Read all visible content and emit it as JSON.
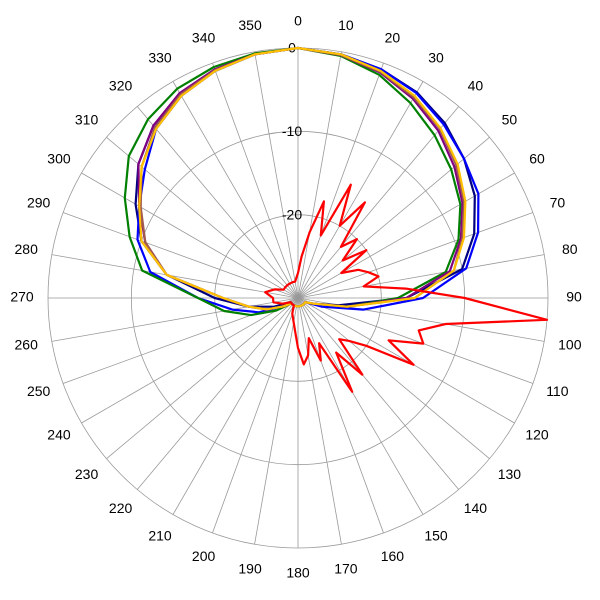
{
  "chart_data": {
    "type": "polar",
    "rlim": [
      -30,
      0
    ],
    "rticks": [
      -20,
      -10,
      0
    ],
    "theta": [
      0,
      10,
      20,
      30,
      40,
      50,
      60,
      70,
      80,
      90,
      100,
      110,
      120,
      130,
      140,
      150,
      160,
      170,
      180,
      190,
      200,
      210,
      220,
      230,
      240,
      250,
      260,
      270,
      280,
      290,
      300,
      310,
      320,
      330,
      340,
      350
    ],
    "series": [
      {
        "color": "#000080",
        "values": [
          0,
          -0.3,
          -0.8,
          -1.5,
          -2.6,
          -4,
          -5.5,
          -7.5,
          -10,
          -17,
          -25,
          -28,
          -29,
          -29,
          -29,
          -29,
          -29,
          -29,
          -29,
          -29,
          -29,
          -29,
          -29,
          -29,
          -29,
          -27,
          -24,
          -20,
          -14,
          -10,
          -7.5,
          -5,
          -3,
          -1.8,
          -1,
          -0.3
        ]
      },
      {
        "color": "#0000ff",
        "values": [
          0,
          -0.3,
          -0.8,
          -1.6,
          -2.8,
          -4,
          -5,
          -7,
          -9.5,
          -15,
          -22,
          -27,
          -29,
          -29,
          -29,
          -29,
          -29,
          -29,
          -29,
          -29,
          -29,
          -29,
          -29,
          -29,
          -28,
          -25,
          -22,
          -18,
          -12,
          -9.5,
          -8,
          -6,
          -3.5,
          -2,
          -1,
          -0.3
        ]
      },
      {
        "color": "#008000",
        "values": [
          0,
          -0.5,
          -1.5,
          -3,
          -4.5,
          -6,
          -7.5,
          -9.5,
          -12,
          -18,
          -24,
          -28,
          -29,
          -29,
          -29,
          -29,
          -29,
          -29,
          -29,
          -29,
          -29,
          -29,
          -29,
          -29,
          -27,
          -24,
          -21,
          -18,
          -11,
          -8.5,
          -6,
          -3.5,
          -2,
          -1,
          -0.5,
          -0.2
        ]
      },
      {
        "color": "#800080",
        "values": [
          0,
          -0.4,
          -1.2,
          -2.4,
          -3.8,
          -5.5,
          -7.2,
          -9.2,
          -11.5,
          -17,
          -24,
          -28,
          -29,
          -29,
          -29,
          -29,
          -29,
          -29,
          -29,
          -29,
          -29,
          -29,
          -29,
          -29,
          -28,
          -26,
          -24,
          -21,
          -14,
          -10.5,
          -8,
          -5,
          -3,
          -1.6,
          -0.8,
          -0.3
        ]
      },
      {
        "color": "#a05a50",
        "values": [
          0,
          -0.4,
          -1.1,
          -2.2,
          -3.5,
          -5.2,
          -7,
          -9,
          -11,
          -16,
          -24,
          -28,
          -29,
          -29,
          -29,
          -29,
          -29,
          -29,
          -29,
          -29,
          -29,
          -29,
          -29,
          -29,
          -28,
          -26,
          -24,
          -21,
          -14,
          -10.5,
          -8.2,
          -5.5,
          -3.3,
          -1.8,
          -0.9,
          -0.3
        ]
      },
      {
        "color": "#ffc000",
        "values": [
          0,
          -0.3,
          -1,
          -2,
          -3.4,
          -5,
          -6.8,
          -8.8,
          -11,
          -16,
          -24,
          -28,
          -29,
          -29,
          -29,
          -29,
          -29,
          -29,
          -29,
          -29,
          -29,
          -29,
          -29,
          -29,
          -28,
          -26,
          -24,
          -21,
          -14,
          -10,
          -8,
          -5.5,
          -3.5,
          -2,
          -1,
          -0.3
        ]
      },
      {
        "color": "#ff0000",
        "theta": [
          0,
          5,
          10,
          15,
          20,
          25,
          30,
          35,
          40,
          45,
          50,
          55,
          60,
          65,
          70,
          75,
          80,
          85,
          90,
          95,
          100,
          105,
          110,
          115,
          120,
          125,
          130,
          135,
          140,
          145,
          150,
          155,
          160,
          165,
          170,
          175,
          180,
          185,
          190,
          200,
          210,
          220,
          230,
          240,
          250,
          260,
          270,
          280,
          290,
          300,
          310,
          320,
          330,
          340,
          350
        ],
        "values": [
          -27,
          -25,
          -22,
          -18,
          -22,
          -15,
          -20,
          -16,
          -22,
          -20,
          -23,
          -20,
          -24,
          -22,
          -21,
          -20,
          -22,
          -17,
          -10,
          0,
          -12,
          -15,
          -14,
          -18,
          -14,
          -20,
          -22,
          -23,
          -18,
          -22,
          -17,
          -24,
          -22,
          -25,
          -23,
          -22,
          -24,
          -26,
          -27,
          -28,
          -29,
          -29,
          -29,
          -29,
          -28,
          -27,
          -27,
          -26,
          -27,
          -28,
          -28,
          -28,
          -28,
          -28,
          -28
        ]
      }
    ]
  }
}
